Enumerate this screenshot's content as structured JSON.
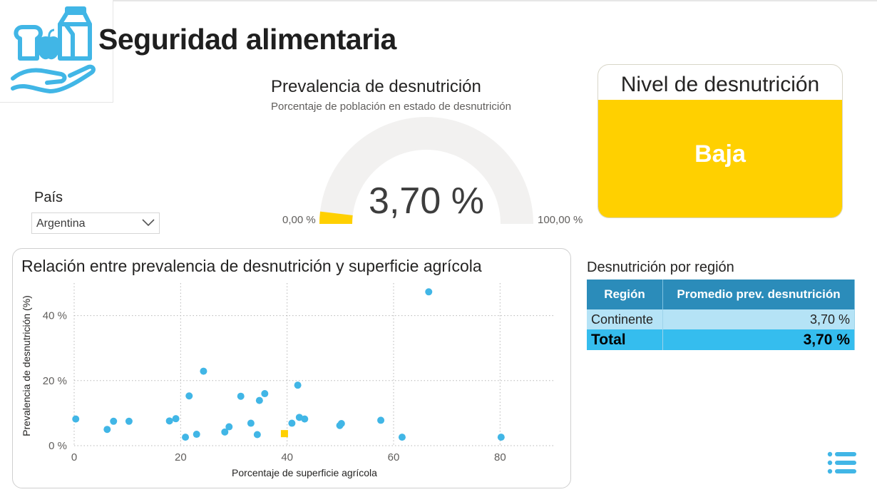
{
  "header": {
    "title": "Seguridad alimentaria",
    "logo_icon": "food-in-hand-icon"
  },
  "gauge": {
    "title": "Prevalencia de desnutrición",
    "subtitle": "Porcentaje de población en estado de desnutrición",
    "value_label": "3,70 %",
    "value": 3.7,
    "min_label": "0,00 %",
    "max_label": "100,00 %",
    "min": 0,
    "max": 100,
    "fill_color": "#ffd000",
    "track_color": "#f2f1f0"
  },
  "card": {
    "title": "Nivel de desnutrición",
    "value": "Baja",
    "color": "#ffd000"
  },
  "slicer": {
    "label": "País",
    "selected": "Argentina"
  },
  "scatter": {
    "title": "Relación entre prevalencia de desnutrición y superficie agrícola"
  },
  "chart_data": {
    "type": "scatter",
    "title": "Relación entre prevalencia de desnutrición y superficie agrícola",
    "xlabel": "Porcentaje de superficie agrícola",
    "ylabel": "Prevalencia de desnutrición (%)",
    "xlim": [
      0,
      90
    ],
    "ylim": [
      0,
      50
    ],
    "x_ticks": [
      0,
      20,
      40,
      60,
      80
    ],
    "x_tick_labels": [
      "0",
      "20",
      "40",
      "60",
      "80"
    ],
    "y_ticks": [
      0,
      20,
      40
    ],
    "y_tick_labels": [
      "0 %",
      "20 %",
      "40 %"
    ],
    "grid": true,
    "series": [
      {
        "color": "#41b6e6",
        "points": [
          [
            0.3,
            8.2
          ],
          [
            6.2,
            5.0
          ],
          [
            7.4,
            7.5
          ],
          [
            10.3,
            7.5
          ],
          [
            17.9,
            7.6
          ],
          [
            19.1,
            8.3
          ],
          [
            20.9,
            2.6
          ],
          [
            21.6,
            15.3
          ],
          [
            23.0,
            3.5
          ],
          [
            24.3,
            22.9
          ],
          [
            28.3,
            4.2
          ],
          [
            29.1,
            5.8
          ],
          [
            31.3,
            15.2
          ],
          [
            33.2,
            6.9
          ],
          [
            34.4,
            3.4
          ],
          [
            34.8,
            13.9
          ],
          [
            35.8,
            16.0
          ],
          [
            40.9,
            6.9
          ],
          [
            42.0,
            18.6
          ],
          [
            42.3,
            8.7
          ],
          [
            43.3,
            8.2
          ],
          [
            49.9,
            6.2
          ],
          [
            50.2,
            6.8
          ],
          [
            57.6,
            7.8
          ],
          [
            61.6,
            2.6
          ],
          [
            66.6,
            47.3
          ],
          [
            80.2,
            2.6
          ]
        ]
      },
      {
        "color": "#ffd000",
        "marker": "square",
        "points": [
          [
            39.5,
            3.7
          ]
        ]
      }
    ]
  },
  "region_table": {
    "title": "Desnutrición por región",
    "columns": [
      "Región",
      "Promedio prev. desnutrición"
    ],
    "rows": [
      {
        "region": "Continente",
        "value": "3,70 %"
      }
    ],
    "total": {
      "label": "Total",
      "value": "3,70 %"
    }
  },
  "menu_icon": "list-menu-icon"
}
